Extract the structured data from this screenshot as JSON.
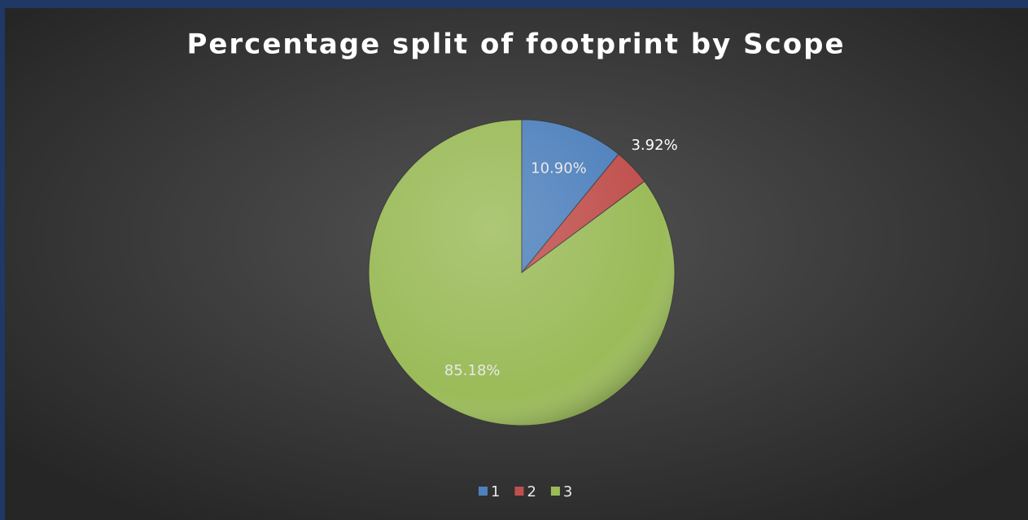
{
  "chart_data": {
    "type": "pie",
    "title": "Percentage split of footprint by Scope",
    "categories": [
      "1",
      "2",
      "3"
    ],
    "values": [
      10.9,
      3.92,
      85.18
    ],
    "value_labels": [
      "10.90%",
      "3.92%",
      "85.18%"
    ],
    "colors": [
      "#4f81bd",
      "#c0504d",
      "#9bbb59"
    ],
    "legend": "bottom"
  }
}
